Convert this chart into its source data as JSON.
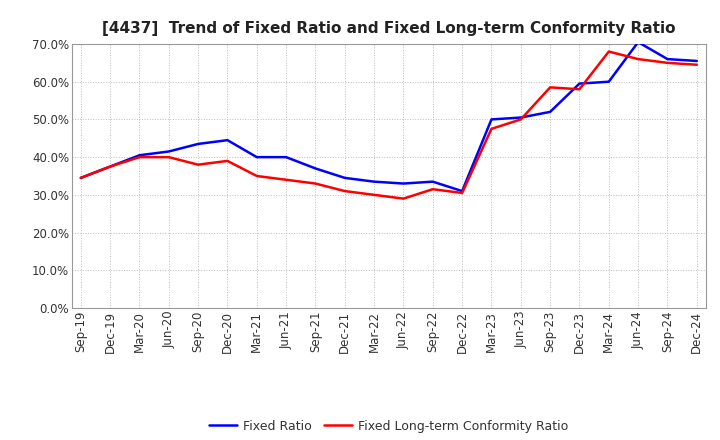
{
  "title": "[4437]  Trend of Fixed Ratio and Fixed Long-term Conformity Ratio",
  "x_labels": [
    "Sep-19",
    "Dec-19",
    "Mar-20",
    "Jun-20",
    "Sep-20",
    "Dec-20",
    "Mar-21",
    "Jun-21",
    "Sep-21",
    "Dec-21",
    "Mar-22",
    "Jun-22",
    "Sep-22",
    "Dec-22",
    "Mar-23",
    "Jun-23",
    "Sep-23",
    "Dec-23",
    "Mar-24",
    "Jun-24",
    "Sep-24",
    "Dec-24"
  ],
  "fixed_ratio": [
    0.345,
    0.375,
    0.405,
    0.415,
    0.435,
    0.445,
    0.4,
    0.4,
    0.37,
    0.345,
    0.335,
    0.33,
    0.335,
    0.31,
    0.5,
    0.505,
    0.52,
    0.595,
    0.6,
    0.705,
    0.66,
    0.655
  ],
  "fixed_lt_ratio": [
    0.345,
    0.375,
    0.4,
    0.4,
    0.38,
    0.39,
    0.35,
    0.34,
    0.33,
    0.31,
    0.3,
    0.29,
    0.315,
    0.305,
    0.475,
    0.5,
    0.585,
    0.58,
    0.68,
    0.66,
    0.65,
    0.645
  ],
  "fixed_ratio_color": "#0000ff",
  "fixed_lt_ratio_color": "#ff0000",
  "ylim": [
    0.0,
    0.7
  ],
  "yticks": [
    0.0,
    0.1,
    0.2,
    0.3,
    0.4,
    0.5,
    0.6,
    0.7
  ],
  "bg_color": "#ffffff",
  "grid_color": "#bbbbbb",
  "legend_fixed": "Fixed Ratio",
  "legend_fixed_lt": "Fixed Long-term Conformity Ratio",
  "line_width": 1.8,
  "title_fontsize": 11,
  "tick_fontsize": 8.5,
  "legend_fontsize": 9
}
